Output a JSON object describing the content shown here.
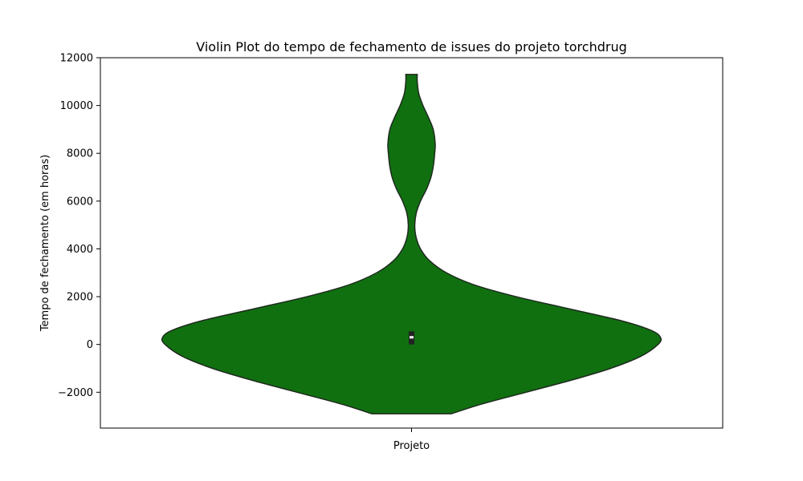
{
  "chart_data": {
    "type": "violin",
    "title": "Violin Plot do tempo de fechamento de issues do projeto torchdrug",
    "xlabel": "",
    "ylabel": "Tempo de fechamento (em horas)",
    "categories": [
      "Projeto"
    ],
    "ylim": [
      -3500,
      12000
    ],
    "yticks": [
      -2000,
      0,
      2000,
      4000,
      6000,
      8000,
      10000,
      12000
    ],
    "ytick_labels": [
      "−2000",
      "0",
      "2000",
      "4000",
      "6000",
      "8000",
      "10000",
      "12000"
    ],
    "grid": false,
    "legend": "none",
    "fill_color": "#107010",
    "edge_color": "#1e2a1e",
    "density_min": -2900,
    "density_max": 11300,
    "density": [
      {
        "y": -2900,
        "w": 0.16
      },
      {
        "y": -2500,
        "w": 0.28
      },
      {
        "y": -2000,
        "w": 0.46
      },
      {
        "y": -1500,
        "w": 0.64
      },
      {
        "y": -1000,
        "w": 0.8
      },
      {
        "y": -500,
        "w": 0.92
      },
      {
        "y": 0,
        "w": 0.99
      },
      {
        "y": 300,
        "w": 1.0
      },
      {
        "y": 600,
        "w": 0.96
      },
      {
        "y": 1000,
        "w": 0.84
      },
      {
        "y": 1500,
        "w": 0.63
      },
      {
        "y": 2000,
        "w": 0.42
      },
      {
        "y": 2500,
        "w": 0.25
      },
      {
        "y": 3000,
        "w": 0.14
      },
      {
        "y": 3500,
        "w": 0.073
      },
      {
        "y": 4000,
        "w": 0.036
      },
      {
        "y": 4500,
        "w": 0.018
      },
      {
        "y": 5000,
        "w": 0.013
      },
      {
        "y": 5500,
        "w": 0.019
      },
      {
        "y": 6000,
        "w": 0.036
      },
      {
        "y": 6500,
        "w": 0.06
      },
      {
        "y": 7000,
        "w": 0.078
      },
      {
        "y": 7500,
        "w": 0.088
      },
      {
        "y": 8000,
        "w": 0.093
      },
      {
        "y": 8400,
        "w": 0.095
      },
      {
        "y": 9000,
        "w": 0.087
      },
      {
        "y": 9500,
        "w": 0.068
      },
      {
        "y": 10000,
        "w": 0.046
      },
      {
        "y": 10500,
        "w": 0.029
      },
      {
        "y": 11000,
        "w": 0.023
      },
      {
        "y": 11300,
        "w": 0.023
      }
    ],
    "box": {
      "q1": 0,
      "median": 300,
      "q3": 550
    }
  }
}
